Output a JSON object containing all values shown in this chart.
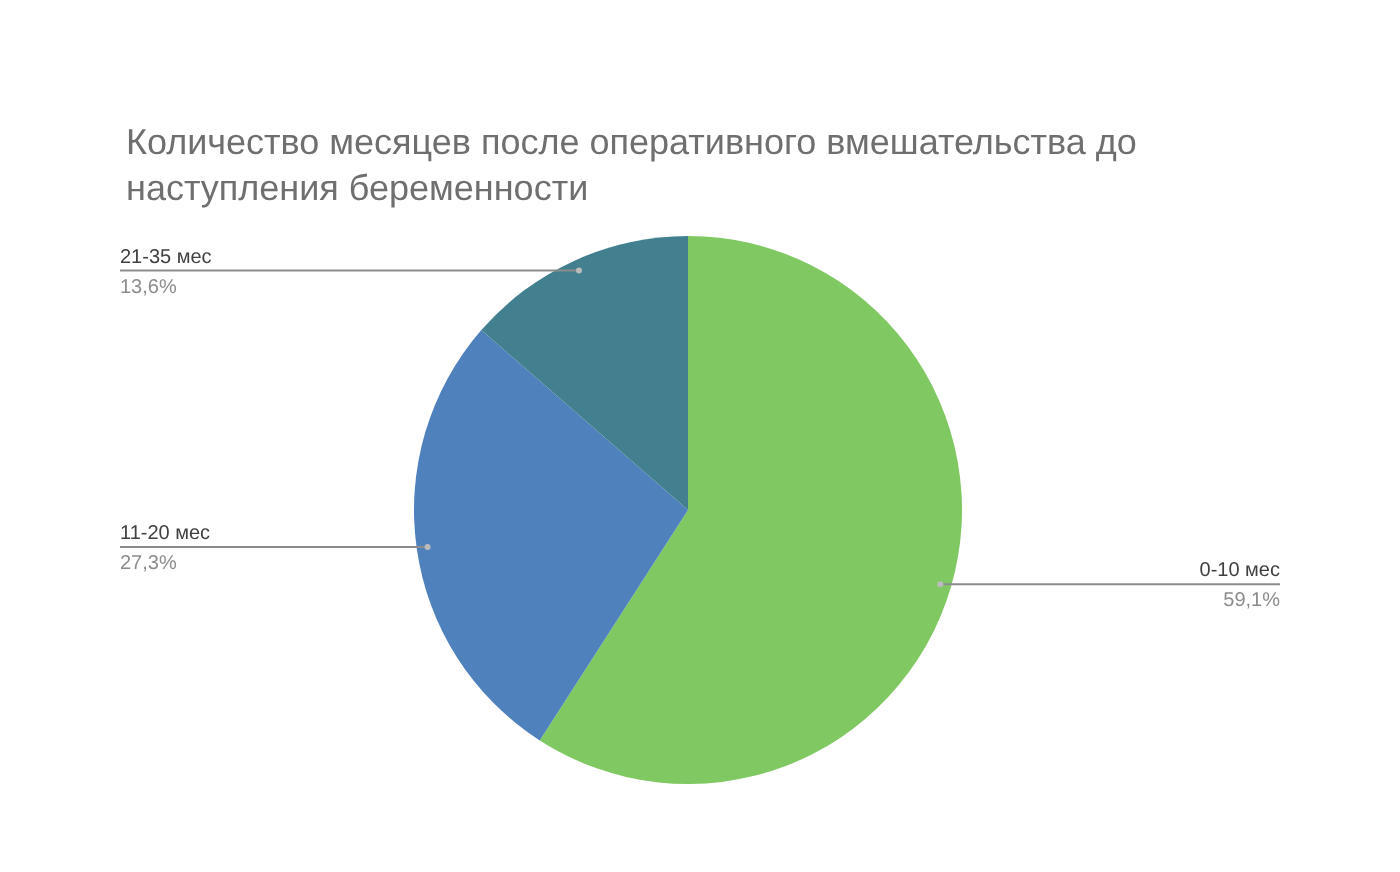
{
  "chart_data": {
    "type": "pie",
    "title": "Количество месяцев после оперативного вмешательства до наступления беременности",
    "categories": [
      "0-10 мес",
      "11-20 мес",
      "21-35 мес"
    ],
    "values": [
      59.1,
      27.3,
      13.6
    ],
    "colors": [
      "#7fc862",
      "#4f81bd",
      "#43808f"
    ],
    "value_labels": [
      "59,1%",
      "27,3%",
      "13,6%"
    ]
  }
}
